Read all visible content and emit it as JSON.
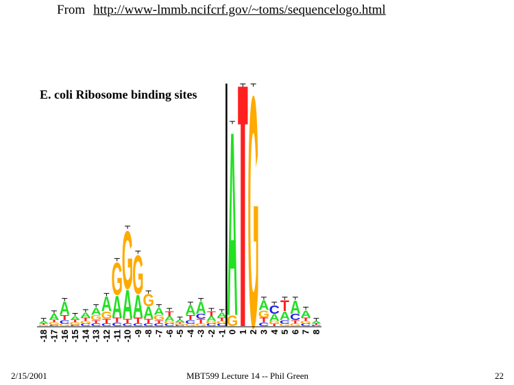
{
  "header": {
    "from_label": "From",
    "source_url": "http://www-lmmb.ncifcrf.gov/~toms/sequencelogo.html"
  },
  "figure": {
    "title": "E. coli Ribosome binding sites"
  },
  "footer": {
    "date": "2/15/2001",
    "lecture": "MBT599 Lecture 14 -- Phil Green",
    "page": "22"
  },
  "colors": {
    "A": "#22e022",
    "C": "#1e1ee6",
    "G": "#ffaa00",
    "T": "#ff2020"
  },
  "chart_data": {
    "type": "sequence-logo",
    "positions": [
      "-18",
      "-17",
      "-16",
      "-15",
      "-14",
      "-13",
      "-12",
      "-11",
      "-10",
      "-9",
      "-8",
      "-7",
      "-6",
      "-5",
      "-4",
      "-3",
      "-2",
      "-1",
      "0",
      "1",
      "2",
      "3",
      "4",
      "5",
      "6",
      "7",
      "8"
    ],
    "columns": [
      {
        "pos": "-18",
        "letters": [
          {
            "b": "G",
            "h": 0.01
          },
          {
            "b": "T",
            "h": 0.01
          },
          {
            "b": "A",
            "h": 0.02
          }
        ]
      },
      {
        "pos": "-17",
        "letters": [
          {
            "b": "C",
            "h": 0.01
          },
          {
            "b": "G",
            "h": 0.02
          },
          {
            "b": "T",
            "h": 0.02
          },
          {
            "b": "A",
            "h": 0.05
          }
        ]
      },
      {
        "pos": "-16",
        "letters": [
          {
            "b": "G",
            "h": 0.02
          },
          {
            "b": "C",
            "h": 0.03
          },
          {
            "b": "T",
            "h": 0.04
          },
          {
            "b": "A",
            "h": 0.11
          }
        ]
      },
      {
        "pos": "-15",
        "letters": [
          {
            "b": "C",
            "h": 0.01
          },
          {
            "b": "G",
            "h": 0.02
          },
          {
            "b": "T",
            "h": 0.02
          },
          {
            "b": "A",
            "h": 0.03
          }
        ]
      },
      {
        "pos": "-14",
        "letters": [
          {
            "b": "C",
            "h": 0.02
          },
          {
            "b": "G",
            "h": 0.02
          },
          {
            "b": "T",
            "h": 0.03
          },
          {
            "b": "A",
            "h": 0.04
          }
        ]
      },
      {
        "pos": "-13",
        "letters": [
          {
            "b": "C",
            "h": 0.02
          },
          {
            "b": "T",
            "h": 0.03
          },
          {
            "b": "G",
            "h": 0.04
          },
          {
            "b": "A",
            "h": 0.06
          }
        ]
      },
      {
        "pos": "-12",
        "letters": [
          {
            "b": "C",
            "h": 0.02
          },
          {
            "b": "T",
            "h": 0.04
          },
          {
            "b": "G",
            "h": 0.06
          },
          {
            "b": "A",
            "h": 0.12
          }
        ]
      },
      {
        "pos": "-11",
        "letters": [
          {
            "b": "C",
            "h": 0.03
          },
          {
            "b": "T",
            "h": 0.04
          },
          {
            "b": "A",
            "h": 0.18
          },
          {
            "b": "G",
            "h": 0.27
          }
        ]
      },
      {
        "pos": "-10",
        "letters": [
          {
            "b": "C",
            "h": 0.02
          },
          {
            "b": "T",
            "h": 0.04
          },
          {
            "b": "A",
            "h": 0.24
          },
          {
            "b": "G",
            "h": 0.48
          }
        ]
      },
      {
        "pos": "-9",
        "letters": [
          {
            "b": "C",
            "h": 0.02
          },
          {
            "b": "T",
            "h": 0.05
          },
          {
            "b": "A",
            "h": 0.19
          },
          {
            "b": "G",
            "h": 0.32
          }
        ]
      },
      {
        "pos": "-8",
        "letters": [
          {
            "b": "C",
            "h": 0.02
          },
          {
            "b": "T",
            "h": 0.04
          },
          {
            "b": "A",
            "h": 0.1
          },
          {
            "b": "G",
            "h": 0.1
          }
        ]
      },
      {
        "pos": "-7",
        "letters": [
          {
            "b": "C",
            "h": 0.02
          },
          {
            "b": "T",
            "h": 0.03
          },
          {
            "b": "G",
            "h": 0.04
          },
          {
            "b": "A",
            "h": 0.06
          }
        ]
      },
      {
        "pos": "-6",
        "letters": [
          {
            "b": "C",
            "h": 0.02
          },
          {
            "b": "G",
            "h": 0.02
          },
          {
            "b": "A",
            "h": 0.04
          },
          {
            "b": "T",
            "h": 0.04
          }
        ]
      },
      {
        "pos": "-5",
        "letters": [
          {
            "b": "C",
            "h": 0.01
          },
          {
            "b": "G",
            "h": 0.01
          },
          {
            "b": "T",
            "h": 0.01
          },
          {
            "b": "A",
            "h": 0.02
          }
        ]
      },
      {
        "pos": "-4",
        "letters": [
          {
            "b": "G",
            "h": 0.02
          },
          {
            "b": "C",
            "h": 0.03
          },
          {
            "b": "T",
            "h": 0.04
          },
          {
            "b": "A",
            "h": 0.08
          }
        ]
      },
      {
        "pos": "-3",
        "letters": [
          {
            "b": "G",
            "h": 0.02
          },
          {
            "b": "T",
            "h": 0.04
          },
          {
            "b": "C",
            "h": 0.04
          },
          {
            "b": "A",
            "h": 0.1
          }
        ]
      },
      {
        "pos": "-2",
        "letters": [
          {
            "b": "C",
            "h": 0.02
          },
          {
            "b": "G",
            "h": 0.02
          },
          {
            "b": "A",
            "h": 0.04
          },
          {
            "b": "T",
            "h": 0.04
          }
        ]
      },
      {
        "pos": "-1",
        "letters": [
          {
            "b": "C",
            "h": 0.02
          },
          {
            "b": "G",
            "h": 0.02
          },
          {
            "b": "T",
            "h": 0.03
          },
          {
            "b": "A",
            "h": 0.04
          }
        ]
      },
      {
        "pos": "0",
        "letters": [
          {
            "b": "G",
            "h": 0.09
          },
          {
            "b": "A",
            "h": 1.53
          }
        ]
      },
      {
        "pos": "1",
        "letters": [
          {
            "b": "T",
            "h": 1.92
          }
        ]
      },
      {
        "pos": "2",
        "letters": [
          {
            "b": "G",
            "h": 1.92
          }
        ]
      },
      {
        "pos": "3",
        "letters": [
          {
            "b": "C",
            "h": 0.03
          },
          {
            "b": "T",
            "h": 0.04
          },
          {
            "b": "G",
            "h": 0.06
          },
          {
            "b": "A",
            "h": 0.08
          }
        ]
      },
      {
        "pos": "4",
        "letters": [
          {
            "b": "T",
            "h": 0.02
          },
          {
            "b": "G",
            "h": 0.02
          },
          {
            "b": "A",
            "h": 0.06
          },
          {
            "b": "C",
            "h": 0.07
          }
        ]
      },
      {
        "pos": "5",
        "letters": [
          {
            "b": "G",
            "h": 0.02
          },
          {
            "b": "C",
            "h": 0.03
          },
          {
            "b": "A",
            "h": 0.07
          },
          {
            "b": "T",
            "h": 0.09
          }
        ]
      },
      {
        "pos": "6",
        "letters": [
          {
            "b": "G",
            "h": 0.02
          },
          {
            "b": "T",
            "h": 0.03
          },
          {
            "b": "C",
            "h": 0.05
          },
          {
            "b": "A",
            "h": 0.11
          }
        ]
      },
      {
        "pos": "7",
        "letters": [
          {
            "b": "C",
            "h": 0.02
          },
          {
            "b": "G",
            "h": 0.02
          },
          {
            "b": "T",
            "h": 0.03
          },
          {
            "b": "A",
            "h": 0.06
          }
        ]
      },
      {
        "pos": "8",
        "letters": [
          {
            "b": "C",
            "h": 0.01
          },
          {
            "b": "T",
            "h": 0.01
          },
          {
            "b": "A",
            "h": 0.02
          }
        ]
      }
    ]
  }
}
